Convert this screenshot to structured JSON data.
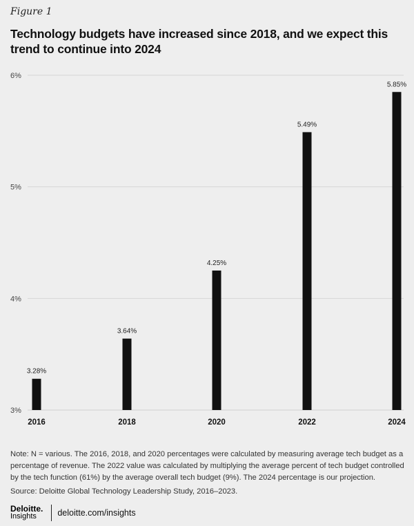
{
  "figure_label": "Figure 1",
  "title": "Technology budgets have increased since 2018, and we expect this trend to continue into 2024",
  "chart_data": {
    "type": "bar",
    "categories": [
      "2016",
      "2018",
      "2020",
      "2022",
      "2024"
    ],
    "values": [
      3.28,
      3.64,
      4.25,
      5.49,
      5.85
    ],
    "value_labels": [
      "3.28%",
      "3.64%",
      "4.25%",
      "5.49%",
      "5.85%"
    ],
    "ylim": [
      3,
      6
    ],
    "yticks": [
      3,
      4,
      5,
      6
    ],
    "ytick_labels": [
      "3%",
      "4%",
      "5%",
      "6%"
    ],
    "grid": true,
    "bar_color": "#111111",
    "grid_color": "#d6d6d6"
  },
  "note": "Note: N = various. The 2016, 2018, and 2020 percentages were calculated by measuring average tech budget as a percentage of revenue. The 2022 value was calculated by multiplying the average percent of tech budget controlled by the tech function (61%) by the average overall tech budget (9%). The 2024 percentage is our projection.",
  "source": "Source: Deloitte Global Technology Leadership Study, 2016–2023.",
  "footer": {
    "logo_main": "Deloitte.",
    "logo_sub": "Insights",
    "url": "deloitte.com/insights"
  }
}
